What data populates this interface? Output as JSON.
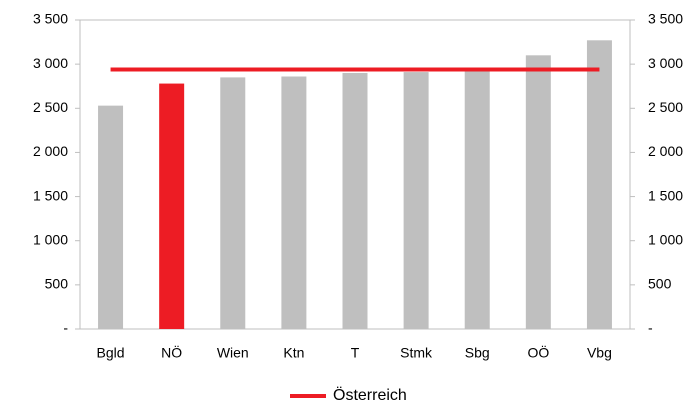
{
  "chart_data": {
    "type": "bar",
    "categories": [
      "Bgld",
      "NÖ",
      "Wien",
      "Ktn",
      "T",
      "Stmk",
      "Sbg",
      "OÖ",
      "Vbg"
    ],
    "values": [
      2530,
      2780,
      2850,
      2860,
      2900,
      2910,
      2930,
      3100,
      3270
    ],
    "colors": [
      "#bfbfbf",
      "#ed1c24",
      "#bfbfbf",
      "#bfbfbf",
      "#bfbfbf",
      "#bfbfbf",
      "#bfbfbf",
      "#bfbfbf",
      "#bfbfbf"
    ],
    "reference_line": {
      "name": "Österreich",
      "value": 2940,
      "color": "#ed1c24"
    },
    "ylim": [
      0,
      3500
    ],
    "yticks": [
      {
        "value": 0,
        "label": "-"
      },
      500,
      {
        "value": 1000,
        "label": "1 000"
      },
      {
        "value": 1500,
        "label": "1 500"
      },
      {
        "value": 2000,
        "label": "2 000"
      },
      {
        "value": 2500,
        "label": "2 500"
      },
      {
        "value": 3000,
        "label": "3 000"
      },
      {
        "value": 3500,
        "label": "3 500"
      }
    ],
    "y2lim": [
      0,
      3500
    ],
    "y2ticks": [
      {
        "value": 0,
        "label": "-"
      },
      500,
      {
        "value": 1000,
        "label": "1 000"
      },
      {
        "value": 1500,
        "label": "1 500"
      },
      {
        "value": 2000,
        "label": "2 000"
      },
      {
        "value": 2500,
        "label": "2 500"
      },
      {
        "value": 3000,
        "label": "3 000"
      },
      {
        "value": 3500,
        "label": "3 500"
      }
    ],
    "grid": false,
    "legend": "bottom"
  }
}
